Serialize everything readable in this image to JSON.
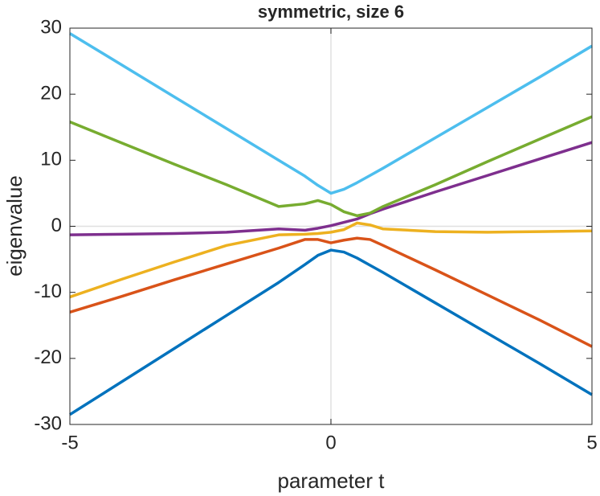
{
  "chart_data": {
    "type": "line",
    "title": "symmetric, size 6",
    "x_label": "parameter t",
    "y_label": "eigenvalue",
    "x": [
      -5,
      -4,
      -3,
      -2,
      -1,
      -0.5,
      -0.25,
      0,
      0.25,
      0.5,
      0.75,
      1,
      2,
      3,
      4,
      5
    ],
    "series": [
      {
        "color": "#0072bd",
        "values": [
          -28.5,
          -23.5,
          -18.5,
          -13.5,
          -8.5,
          -5.8,
          -4.4,
          -3.6,
          -3.9,
          -4.8,
          -5.9,
          -7.0,
          -11.6,
          -16.2,
          -20.8,
          -25.5
        ]
      },
      {
        "color": "#d95319",
        "values": [
          -13,
          -10.6,
          -8.1,
          -5.7,
          -3.3,
          -2.0,
          -2.0,
          -2.5,
          -2.1,
          -1.8,
          -2.0,
          -2.9,
          -6.6,
          -10.4,
          -14.2,
          -18.2
        ]
      },
      {
        "color": "#edb120",
        "values": [
          -10.7,
          -8.0,
          -5.4,
          -2.9,
          -1.3,
          -1.2,
          -1.1,
          -0.9,
          -0.5,
          0.5,
          0.2,
          -0.4,
          -0.8,
          -0.9,
          -0.8,
          -0.7
        ]
      },
      {
        "color": "#7e2f8e",
        "values": [
          -1.3,
          -1.2,
          -1.1,
          -0.9,
          -0.4,
          -0.6,
          -0.3,
          0.1,
          0.6,
          1.1,
          1.9,
          2.6,
          5.2,
          7.7,
          10.2,
          12.7
        ]
      },
      {
        "color": "#77ac30",
        "values": [
          15.8,
          12.6,
          9.4,
          6.3,
          3.0,
          3.4,
          3.9,
          3.3,
          2.2,
          1.6,
          2.0,
          3.0,
          6.3,
          9.8,
          13.2,
          16.6
        ]
      },
      {
        "color": "#4dbeee",
        "values": [
          29.2,
          24.4,
          19.6,
          14.8,
          10.0,
          7.6,
          6.2,
          5.0,
          5.6,
          6.6,
          7.7,
          8.8,
          13.4,
          18.0,
          22.6,
          27.3
        ]
      }
    ],
    "xlim": [
      -5,
      5
    ],
    "xticks": [
      -5,
      0,
      5
    ],
    "ylim": [
      -30,
      30
    ],
    "yticks": [
      -30,
      -20,
      -10,
      0,
      10,
      20,
      30
    ],
    "zero_lines": true
  }
}
